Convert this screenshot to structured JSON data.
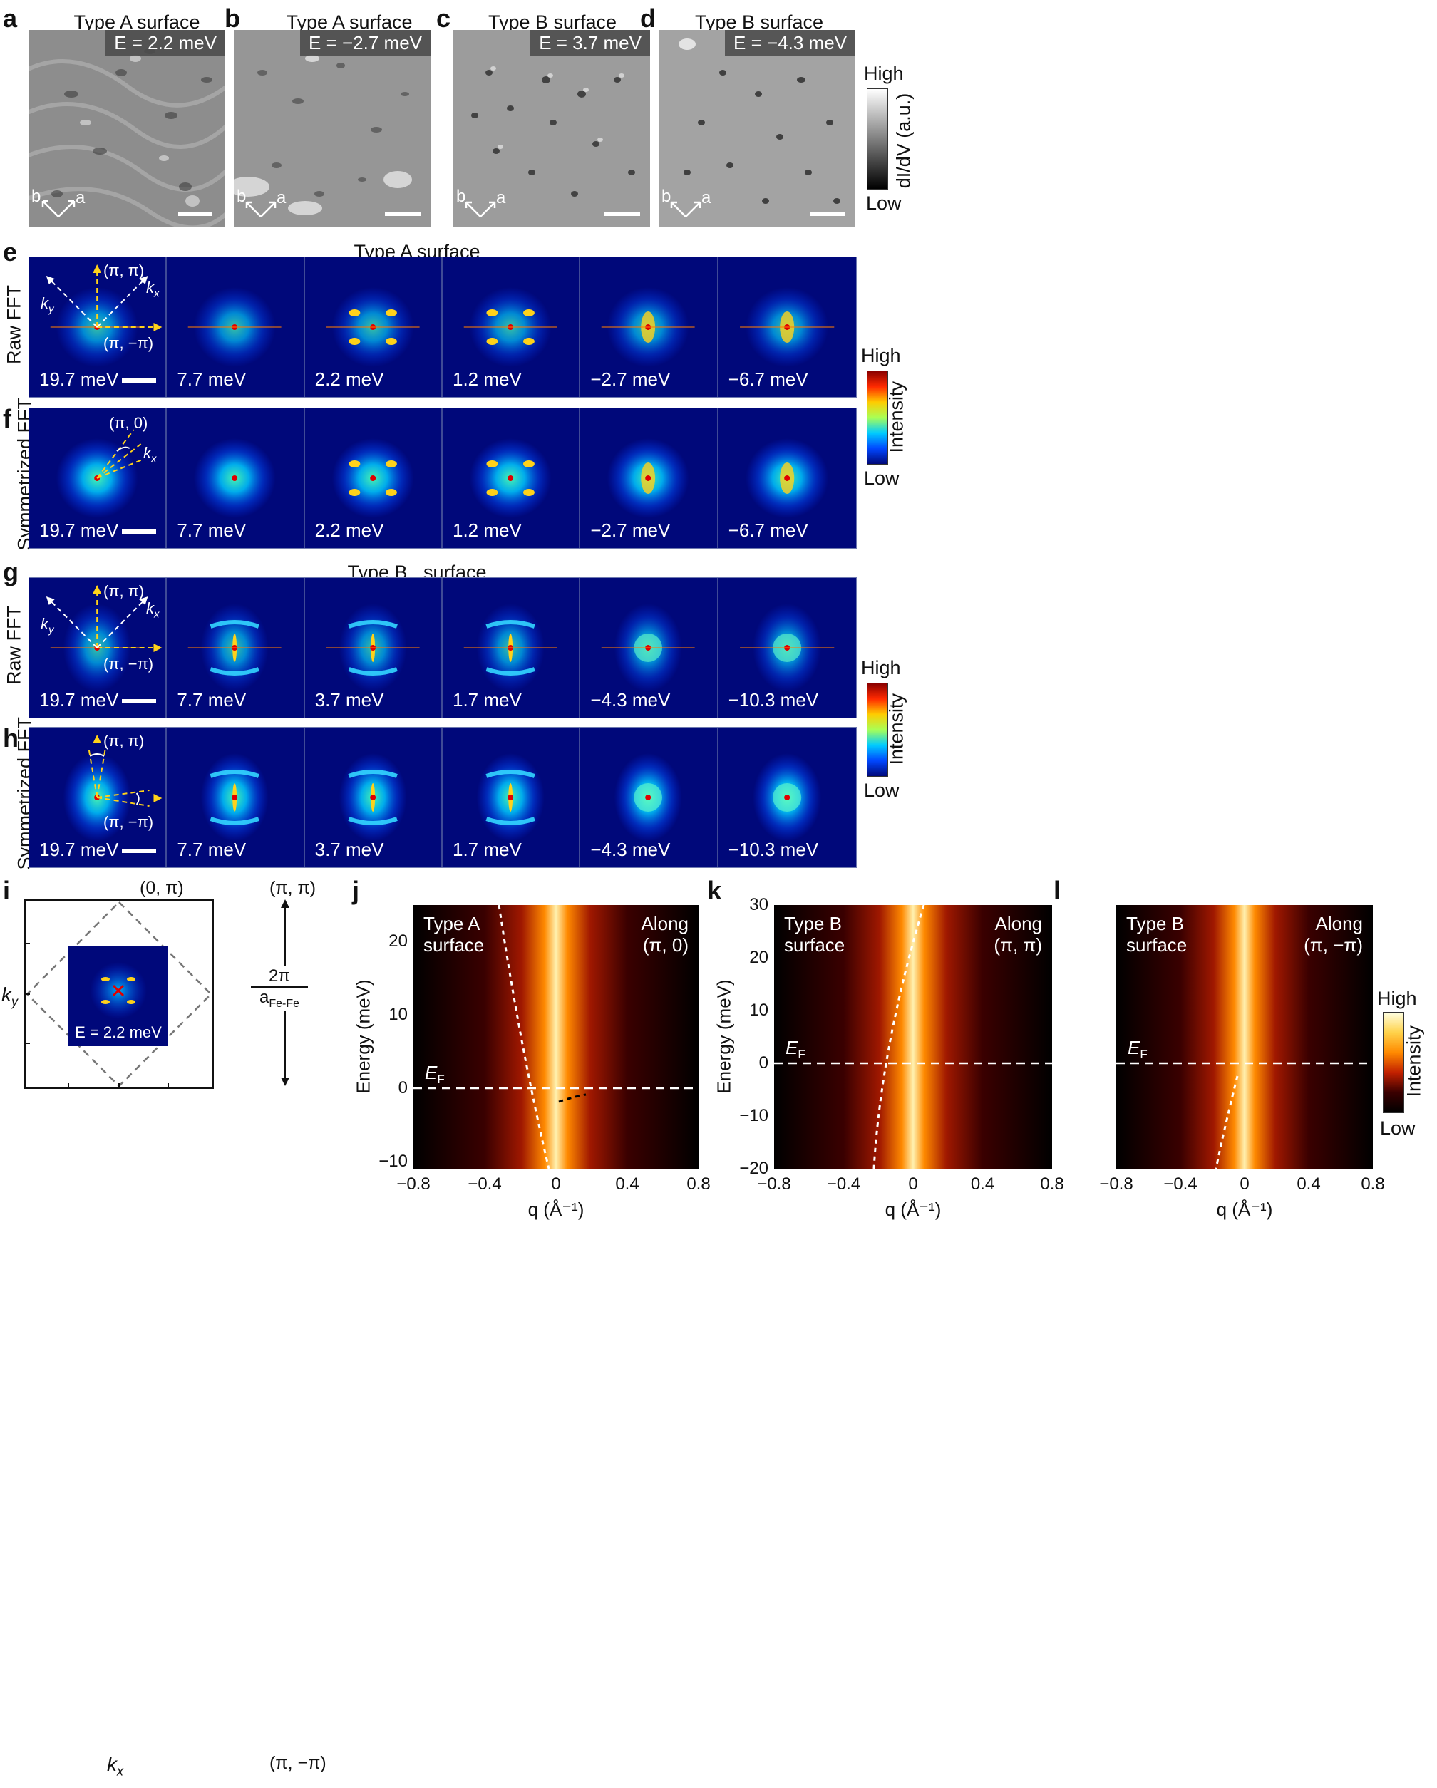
{
  "panel_letters": {
    "a": "a",
    "b": "b",
    "c": "c",
    "d": "d",
    "e": "e",
    "f": "f",
    "g": "g",
    "h": "h",
    "i": "i",
    "j": "j",
    "k": "k",
    "l": "l"
  },
  "stm_panels": [
    {
      "title": "Type A surface",
      "energy": "E = 2.2 meV"
    },
    {
      "title": "Type A surface",
      "energy": "E = −2.7 meV"
    },
    {
      "title": "Type B surface",
      "energy": "E = 3.7 meV"
    },
    {
      "title": "Type B surface",
      "energy": "E = −4.3 meV"
    }
  ],
  "axes_labels": {
    "a": "a",
    "b": "b"
  },
  "didv_colorbar": {
    "high": "High",
    "low": "Low",
    "label": "dI/dV (a.u.)"
  },
  "section_titles": {
    "type_a": "Type A surface",
    "type_b": "Type B   surface"
  },
  "row_labels": {
    "raw": "Raw FFT",
    "sym": "Symmetrized FFT"
  },
  "type_a_energies": [
    "19.7 meV",
    "7.7 meV",
    "2.2 meV",
    "1.2 meV",
    "−2.7 meV",
    "−6.7 meV"
  ],
  "type_b_energies": [
    "19.7 meV",
    "7.7 meV",
    "3.7 meV",
    "1.7 meV",
    "−4.3 meV",
    "−10.3 meV"
  ],
  "intensity_colorbar": {
    "high": "High",
    "low": "Low",
    "label": "Intensity"
  },
  "fft_annotations": {
    "pi_pi": "(π, π)",
    "pi_mpi": "(π, −π)",
    "pi_0": "(π, 0)",
    "ky": "k",
    "kx": "k",
    "sub_y": "y",
    "sub_x": "x"
  },
  "panel_i": {
    "top": "(0, π)",
    "top_right": "(π, π)",
    "bottom_right": "(π, −π)",
    "energy": "E = 2.2 meV",
    "fraction_num": "2π",
    "fraction_den": "a",
    "fraction_den_sub": "Fe-Fe",
    "ky": "k",
    "kx": "k",
    "sub_y": "y",
    "sub_x": "x"
  },
  "dispersion_panels": [
    {
      "surface_line1": "Type A",
      "surface_line2": "surface",
      "along_line1": "Along",
      "along_line2": "(π, 0)",
      "yticks": [
        "20",
        "10",
        "0",
        "−10"
      ],
      "xticks": [
        "−0.8",
        "−0.4",
        "0",
        "0.4",
        "0.8"
      ]
    },
    {
      "surface_line1": "Type B",
      "surface_line2": "surface",
      "along_line1": "Along",
      "along_line2": "(π, π)",
      "yticks": [
        "30",
        "20",
        "10",
        "0",
        "−10",
        "−20"
      ],
      "xticks": [
        "−0.8",
        "−0.4",
        "0",
        "0.4",
        "0.8"
      ]
    },
    {
      "surface_line1": "Type B",
      "surface_line2": "surface",
      "along_line1": "Along",
      "along_line2": "(π, −π)",
      "yticks": [],
      "xticks": [
        "−0.8",
        "−0.4",
        "0",
        "0.4",
        "0.8"
      ]
    }
  ],
  "dispersion_axes": {
    "ylabel": "Energy (meV)",
    "xlabel": "q (Å⁻¹)",
    "ef": "E",
    "ef_sub": "F"
  },
  "colors": {
    "fft_bg": "#00087a",
    "hot_bg": "#000000",
    "accent_yellow": "#ffd21a"
  }
}
